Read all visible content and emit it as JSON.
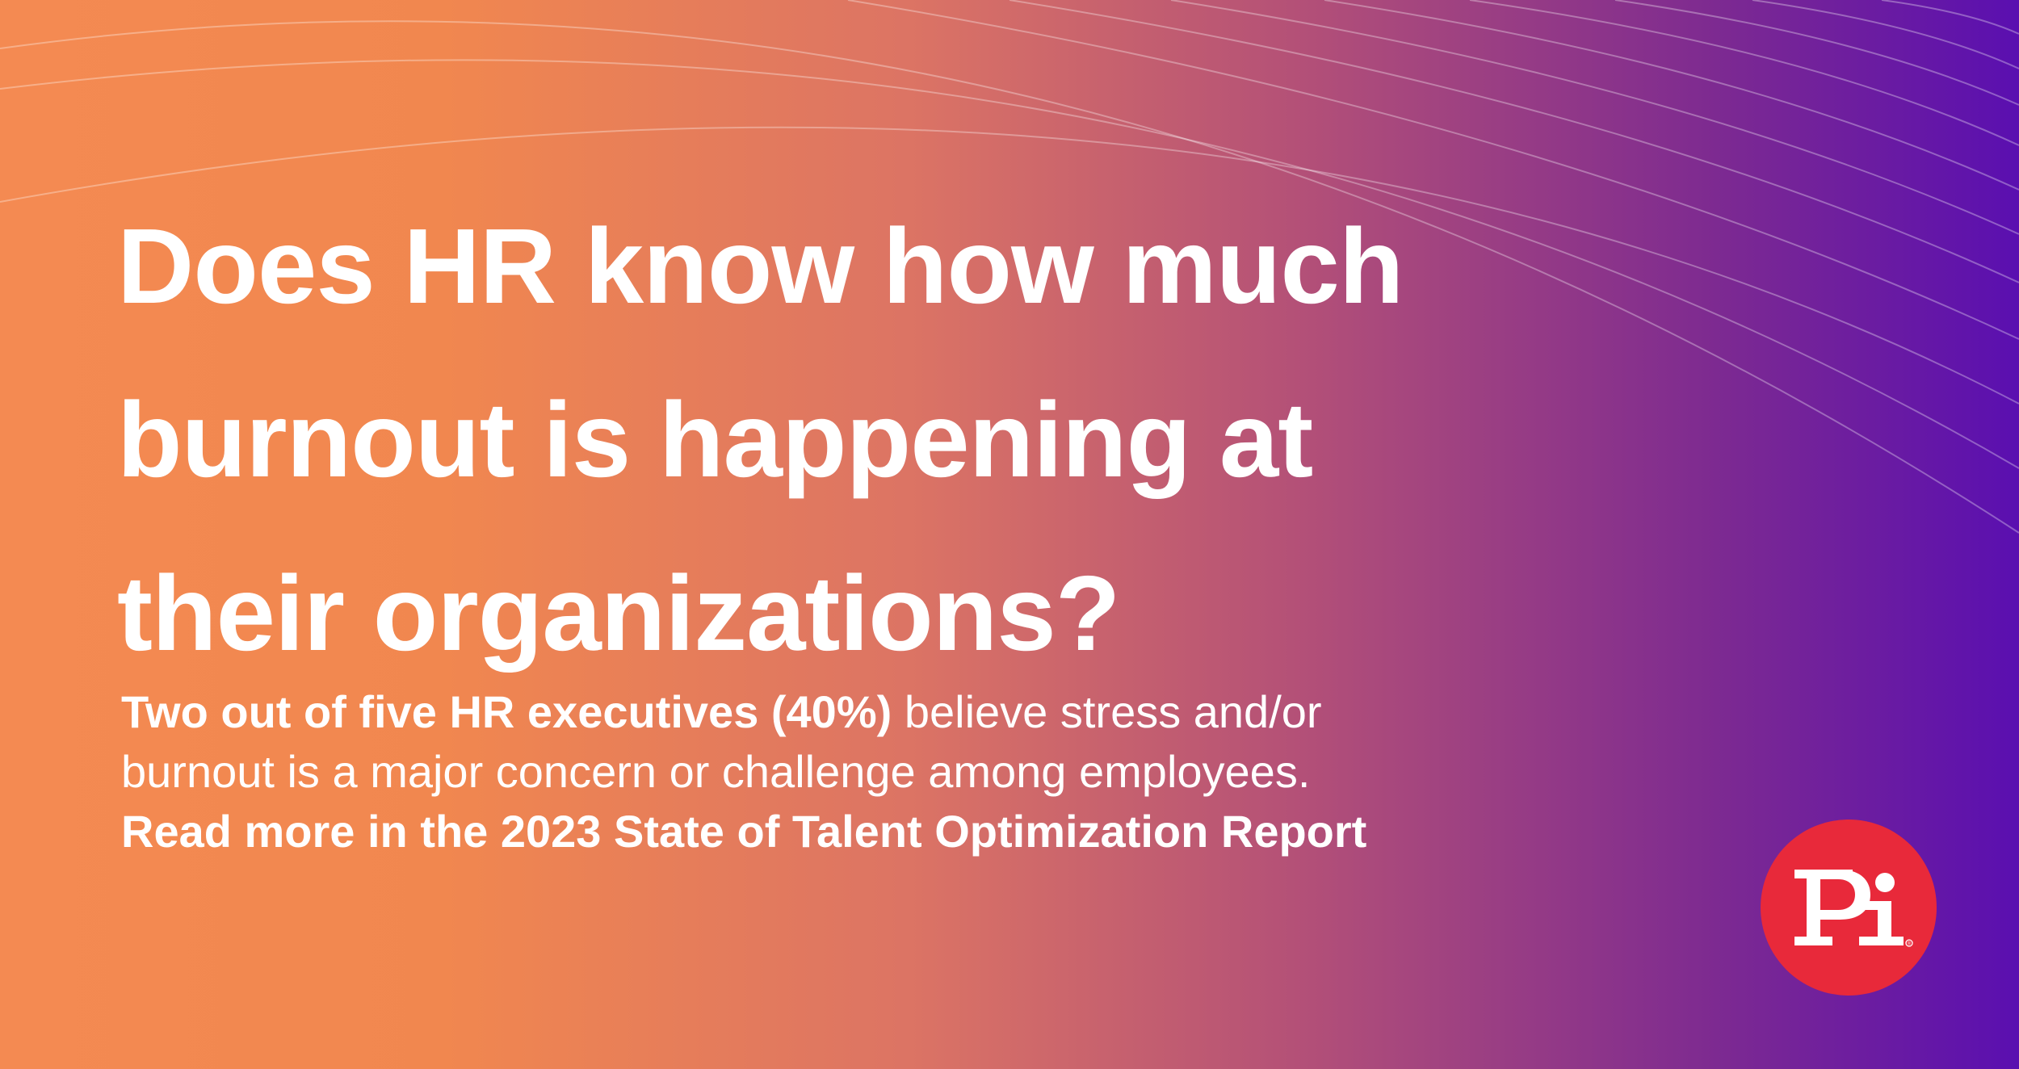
{
  "headline": {
    "line1": "Does HR know how much",
    "line2": "burnout is happening at",
    "line3": "their organizations?"
  },
  "body": {
    "stat_bold": "Two out of five HR executives (40%)",
    "stat_rest_1": " believe stress and/or",
    "stat_rest_2": "burnout is a major concern or challenge among employees.",
    "cta": "Read more in the 2023 State of Talent Optimization Report"
  },
  "logo": {
    "text": "PI",
    "registered_mark": "®"
  },
  "colors": {
    "gradient_start": "#f48a52",
    "gradient_end": "#5a0fb0",
    "logo_red": "#e8293a",
    "text": "#ffffff"
  }
}
